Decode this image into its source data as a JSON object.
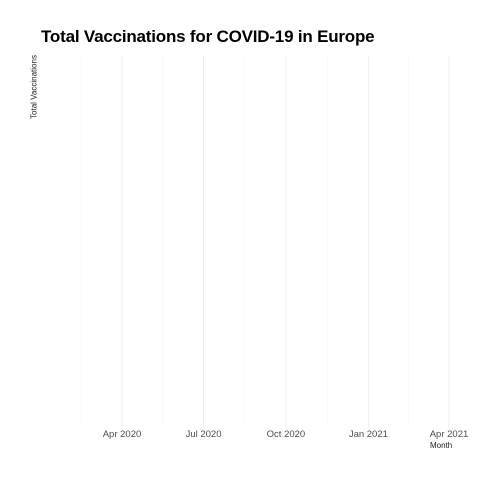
{
  "chart_data": {
    "type": "line",
    "title": "Total Vaccinations for COVID-19 in Europe",
    "xlabel": "Month",
    "ylabel": "Total Vaccinations",
    "x_ticks": [
      {
        "date": "2020-04-01",
        "label": "Apr 2020"
      },
      {
        "date": "2020-07-01",
        "label": "Jul 2020"
      },
      {
        "date": "2020-10-01",
        "label": "Oct 2020"
      },
      {
        "date": "2021-01-01",
        "label": "Jan 2021"
      },
      {
        "date": "2021-04-01",
        "label": "Apr 2021"
      }
    ],
    "xlim": [
      "2020-02-15",
      "2021-04-01"
    ],
    "series": [],
    "grid": true,
    "background": "#ffffff",
    "grid_major_color": "#ebebeb",
    "grid_minor_color": "#f5f5f5"
  }
}
